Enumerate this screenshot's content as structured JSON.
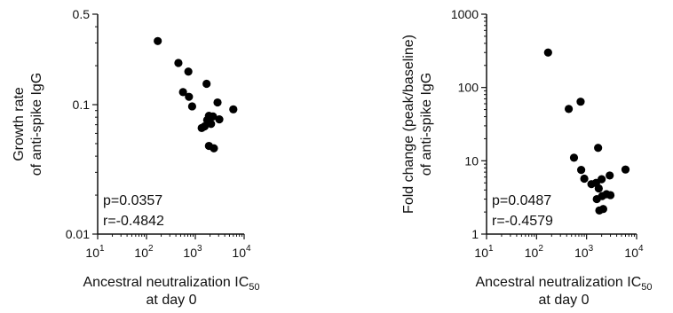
{
  "chart_data": [
    {
      "type": "scatter",
      "title": "",
      "xlabel": {
        "line1": "Ancestral neutralization IC",
        "sub": "50",
        "line2": "at day 0"
      },
      "ylabel": {
        "line1": "Growth rate",
        "line2": "of anti-spike IgG"
      },
      "x_scale": "log",
      "y_scale": "log",
      "xlim": [
        10,
        10000
      ],
      "ylim": [
        0.01,
        0.5
      ],
      "grid": false,
      "x_ticks": [
        {
          "value": 10,
          "base": "10",
          "exp": "1"
        },
        {
          "value": 100,
          "base": "10",
          "exp": "2"
        },
        {
          "value": 1000,
          "base": "10",
          "exp": "3"
        },
        {
          "value": 10000,
          "base": "10",
          "exp": "4"
        }
      ],
      "y_ticks": [
        {
          "value": 0.01,
          "label": "0.01"
        },
        {
          "value": 0.1,
          "label": "0.1"
        },
        {
          "value": 0.5,
          "label": "0.5"
        }
      ],
      "annotations": [
        "p=0.0357",
        "r=-0.4842"
      ],
      "points": [
        {
          "x": 170,
          "y": 0.31
        },
        {
          "x": 450,
          "y": 0.21
        },
        {
          "x": 560,
          "y": 0.125
        },
        {
          "x": 720,
          "y": 0.18
        },
        {
          "x": 740,
          "y": 0.115
        },
        {
          "x": 860,
          "y": 0.097
        },
        {
          "x": 1350,
          "y": 0.066
        },
        {
          "x": 1550,
          "y": 0.068
        },
        {
          "x": 1700,
          "y": 0.145
        },
        {
          "x": 1750,
          "y": 0.076
        },
        {
          "x": 1900,
          "y": 0.082
        },
        {
          "x": 1900,
          "y": 0.048
        },
        {
          "x": 2100,
          "y": 0.071
        },
        {
          "x": 2300,
          "y": 0.081
        },
        {
          "x": 2400,
          "y": 0.046
        },
        {
          "x": 2850,
          "y": 0.104
        },
        {
          "x": 3100,
          "y": 0.077
        },
        {
          "x": 6000,
          "y": 0.092
        }
      ]
    },
    {
      "type": "scatter",
      "title": "",
      "xlabel": {
        "line1": "Ancestral neutralization IC",
        "sub": "50",
        "line2": "at day 0"
      },
      "ylabel": {
        "line1": "Fold change (peak/baseline)",
        "line2": "of anti-spike IgG"
      },
      "x_scale": "log",
      "y_scale": "log",
      "xlim": [
        10,
        10000
      ],
      "ylim": [
        1,
        1000
      ],
      "grid": false,
      "x_ticks": [
        {
          "value": 10,
          "base": "10",
          "exp": "1"
        },
        {
          "value": 100,
          "base": "10",
          "exp": "2"
        },
        {
          "value": 1000,
          "base": "10",
          "exp": "3"
        },
        {
          "value": 10000,
          "base": "10",
          "exp": "4"
        }
      ],
      "y_ticks": [
        {
          "value": 1,
          "label": "1"
        },
        {
          "value": 10,
          "label": "10"
        },
        {
          "value": 100,
          "label": "100"
        },
        {
          "value": 1000,
          "label": "1000"
        }
      ],
      "annotations": [
        "p=0.0487",
        "r=-0.4579"
      ],
      "points": [
        {
          "x": 170,
          "y": 300
        },
        {
          "x": 440,
          "y": 51
        },
        {
          "x": 560,
          "y": 11
        },
        {
          "x": 760,
          "y": 64
        },
        {
          "x": 780,
          "y": 7.5
        },
        {
          "x": 900,
          "y": 5.7
        },
        {
          "x": 1250,
          "y": 4.8
        },
        {
          "x": 1550,
          "y": 5.0
        },
        {
          "x": 1600,
          "y": 3.0
        },
        {
          "x": 1700,
          "y": 15
        },
        {
          "x": 1750,
          "y": 4.2
        },
        {
          "x": 1800,
          "y": 2.1
        },
        {
          "x": 2000,
          "y": 5.6
        },
        {
          "x": 2050,
          "y": 3.3
        },
        {
          "x": 2150,
          "y": 2.2
        },
        {
          "x": 2500,
          "y": 3.5
        },
        {
          "x": 2900,
          "y": 6.3
        },
        {
          "x": 3000,
          "y": 3.4
        },
        {
          "x": 6000,
          "y": 7.6
        }
      ]
    }
  ]
}
